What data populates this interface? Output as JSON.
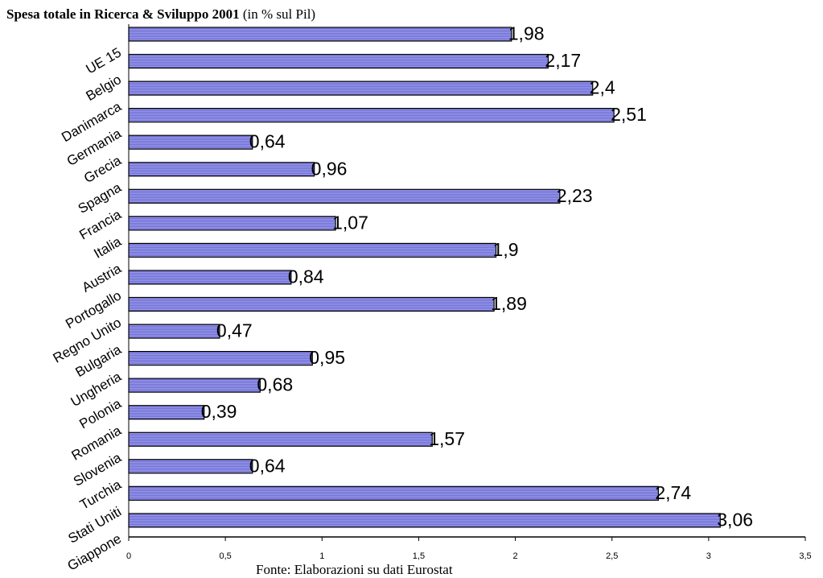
{
  "chart_data": {
    "type": "bar",
    "orientation": "horizontal",
    "title": "Spesa totale in Ricerca & Sviluppo 2001",
    "subtitle": "(in % sul Pil)",
    "source": "Fonte: Elaborazioni su dati Eurostat",
    "categories": [
      "UE 15",
      "Belgio",
      "Danimarca",
      "Germania",
      "Grecia",
      "Spagna",
      "Francia",
      "Italia",
      "Austria",
      "Portogallo",
      "Regno Unito",
      "Bulgaria",
      "Ungheria",
      "Polonia",
      "Romania",
      "Slovenia",
      "Turchia",
      "Stati Uniti",
      "Giappone"
    ],
    "values": [
      1.98,
      2.17,
      2.4,
      2.51,
      0.64,
      0.96,
      2.23,
      1.07,
      1.9,
      0.84,
      1.89,
      0.47,
      0.95,
      0.68,
      0.39,
      1.57,
      0.64,
      2.74,
      3.06
    ],
    "value_labels": [
      "1,98",
      "2,17",
      "2,4",
      "2,51",
      "0,64",
      "0,96",
      "2,23",
      "1,07",
      "1,9",
      "0,84",
      "1,89",
      "0,47",
      "0,95",
      "0,68",
      "0,39",
      "1,57",
      "0,64",
      "2,74",
      "3,06"
    ],
    "xlim": [
      0,
      3.5
    ],
    "x_ticks": [
      0,
      0.5,
      1,
      1.5,
      2,
      2.5,
      3,
      3.5
    ],
    "x_tick_labels": [
      "0",
      "0,5",
      "1",
      "1,5",
      "2",
      "2,5",
      "3",
      "3,5"
    ],
    "bar_color": "#8c8ce6",
    "grid": false,
    "legend": "none"
  }
}
